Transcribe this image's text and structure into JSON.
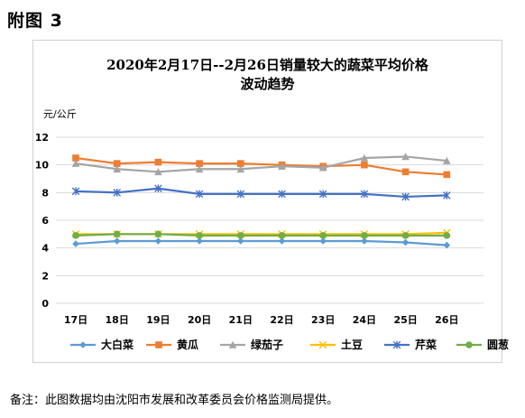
{
  "heading": "附图 3",
  "note": "备注：此图数据均由沈阳市发展和改革委员会价格监测局提供。",
  "chart_data": {
    "type": "line",
    "title_line1": "2020年2月17日--2月26日销量较大的蔬菜平均价格",
    "title_line2": "波动趋势",
    "ylabel": "元/公斤",
    "xlabel": "",
    "ylim": [
      0,
      12
    ],
    "yticks": [
      0,
      2,
      4,
      6,
      8,
      10,
      12
    ],
    "grid": true,
    "legend": "bottom",
    "categories": [
      "17日",
      "18日",
      "19日",
      "20日",
      "21日",
      "22日",
      "23日",
      "24日",
      "25日",
      "26日"
    ],
    "series": [
      {
        "name": "大白菜",
        "color": "#5B9BD5",
        "marker": "diamond",
        "values": [
          4.3,
          4.5,
          4.5,
          4.5,
          4.5,
          4.5,
          4.5,
          4.5,
          4.4,
          4.2
        ]
      },
      {
        "name": "黄瓜",
        "color": "#ED7D31",
        "marker": "square",
        "values": [
          10.5,
          10.1,
          10.2,
          10.1,
          10.1,
          10.0,
          9.9,
          10.0,
          9.5,
          9.3
        ]
      },
      {
        "name": "绿茄子",
        "color": "#A5A5A5",
        "marker": "triangle",
        "values": [
          10.1,
          9.7,
          9.5,
          9.7,
          9.7,
          9.9,
          9.8,
          10.5,
          10.6,
          10.3
        ]
      },
      {
        "name": "土豆",
        "color": "#FFC000",
        "marker": "x",
        "values": [
          5.0,
          5.0,
          5.0,
          5.0,
          5.0,
          5.0,
          5.0,
          5.0,
          5.0,
          5.1
        ]
      },
      {
        "name": "芹菜",
        "color": "#4472C4",
        "marker": "star",
        "values": [
          8.1,
          8.0,
          8.3,
          7.9,
          7.9,
          7.9,
          7.9,
          7.9,
          7.7,
          7.8
        ]
      },
      {
        "name": "圆葱",
        "color": "#70AD47",
        "marker": "circle",
        "values": [
          4.9,
          5.0,
          5.0,
          4.9,
          4.9,
          4.9,
          4.9,
          4.9,
          4.9,
          4.9
        ]
      }
    ]
  }
}
